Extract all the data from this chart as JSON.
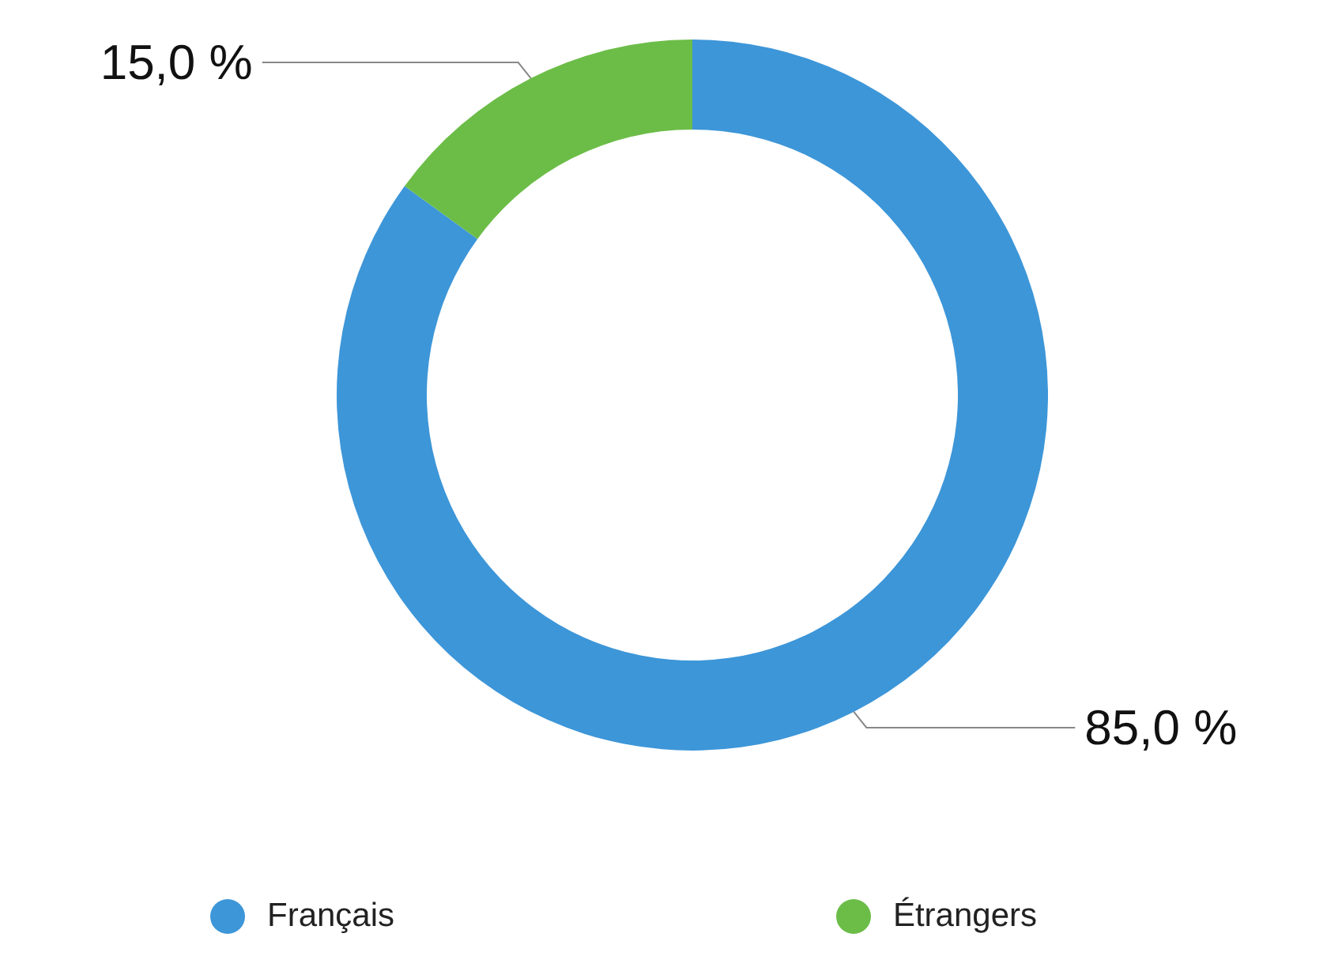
{
  "chart_data": {
    "type": "donut",
    "categories": [
      "Français",
      "Étrangers"
    ],
    "values": [
      85,
      15
    ],
    "colors": [
      "#3d96d8",
      "#6cbd48"
    ],
    "value_labels": [
      "85,0 %",
      "15,0 %"
    ],
    "legend": "bottom"
  }
}
